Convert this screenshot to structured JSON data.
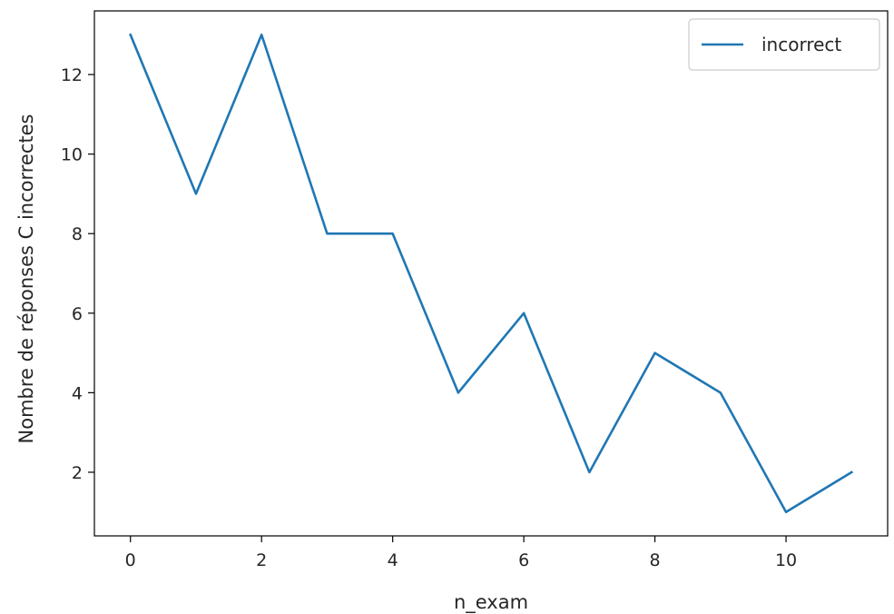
{
  "chart_data": {
    "type": "line",
    "xlabel": "n_exam",
    "ylabel": "Nombre de réponses C incorrectes",
    "x": [
      0,
      1,
      2,
      3,
      4,
      5,
      6,
      7,
      8,
      9,
      10,
      11
    ],
    "series": [
      {
        "name": "incorrect",
        "color": "#1f77b4",
        "values": [
          13,
          9,
          13,
          8,
          8,
          4,
          6,
          2,
          5,
          4,
          1,
          2
        ]
      }
    ],
    "xticks": [
      0,
      2,
      4,
      6,
      8,
      10
    ],
    "yticks": [
      2,
      4,
      6,
      8,
      10,
      12
    ],
    "xlim": [
      -0.55,
      11.55
    ],
    "ylim": [
      0.4,
      13.6
    ],
    "grid": false,
    "legend": "top-right"
  }
}
